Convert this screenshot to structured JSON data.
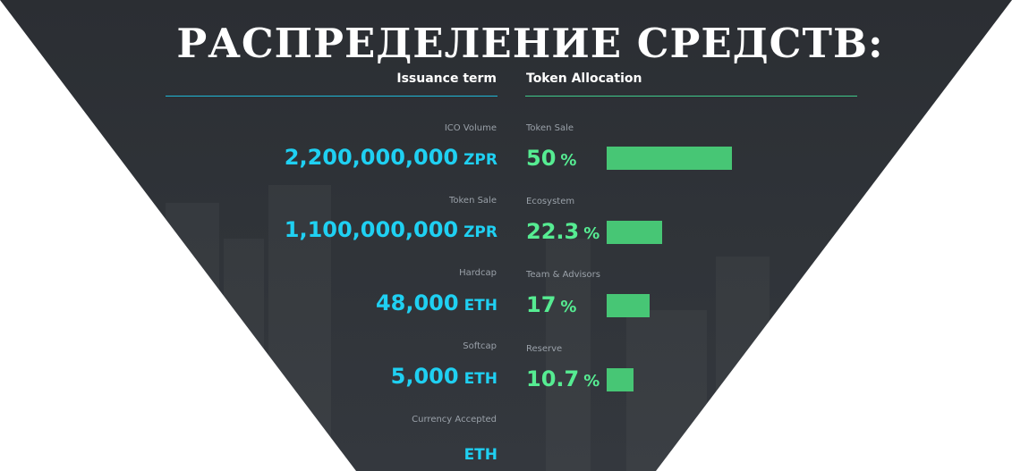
{
  "title": "РАСПРЕДЕЛЕНИЕ СРЕДСТВ:",
  "issuance": {
    "heading": "Issuance term",
    "items": [
      {
        "label": "ICO Volume",
        "amount": "2,200,000,000",
        "unit": "ZPR"
      },
      {
        "label": "Token Sale",
        "amount": "1,100,000,000",
        "unit": "ZPR"
      },
      {
        "label": "Hardcap",
        "amount": "48,000",
        "unit": "ETH"
      },
      {
        "label": "Softcap",
        "amount": "5,000",
        "unit": "ETH"
      },
      {
        "label": "Currency Accepted",
        "amount": "",
        "unit": "ETH"
      }
    ]
  },
  "allocation": {
    "heading": "Token Allocation",
    "bar_color": "#47c675",
    "items": [
      {
        "label": "Token Sale",
        "value": "50",
        "unit": "%",
        "percent": 50
      },
      {
        "label": "Ecosystem",
        "value": "22.3",
        "unit": "%",
        "percent": 22.3
      },
      {
        "label": "Team & Advisors",
        "value": "17",
        "unit": "%",
        "percent": 17
      },
      {
        "label": "Reserve",
        "value": "10.7",
        "unit": "%",
        "percent": 10.7
      }
    ]
  },
  "colors": {
    "background": "#2f3338",
    "accent_cyan": "#1fd0f2",
    "accent_green": "#56ec92"
  }
}
